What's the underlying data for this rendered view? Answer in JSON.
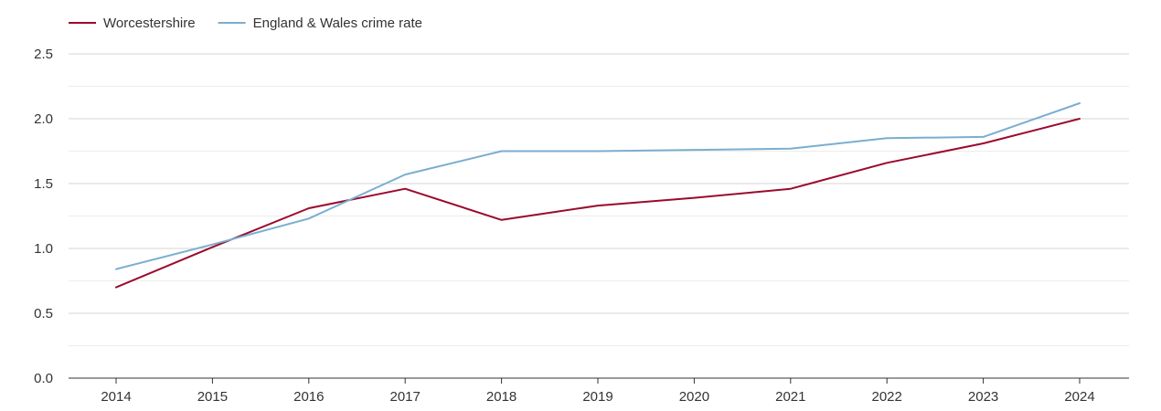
{
  "chart_data": {
    "type": "line",
    "x": [
      "2014",
      "2015",
      "2016",
      "2017",
      "2018",
      "2019",
      "2020",
      "2021",
      "2022",
      "2023",
      "2024"
    ],
    "series": [
      {
        "name": "Worcestershire",
        "color": "#9b0a2d",
        "values": [
          0.7,
          1.01,
          1.31,
          1.46,
          1.22,
          1.33,
          1.39,
          1.46,
          1.66,
          1.81,
          2.0
        ]
      },
      {
        "name": "England & Wales crime rate",
        "color": "#7aaed0",
        "values": [
          0.84,
          1.03,
          1.23,
          1.57,
          1.75,
          1.75,
          1.76,
          1.77,
          1.85,
          1.86,
          2.12
        ]
      }
    ],
    "ylim": [
      0,
      2.5
    ],
    "yticks": [
      "0.0",
      "0.5",
      "1.0",
      "1.5",
      "2.0",
      "2.5"
    ],
    "grid": true,
    "legend_position": "top-left"
  }
}
